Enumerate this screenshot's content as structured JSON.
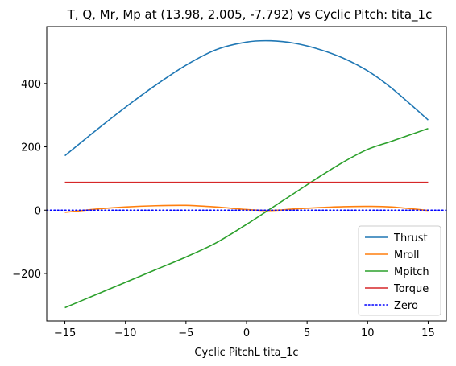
{
  "chart_data": {
    "type": "line",
    "title": "T, Q, Mr, Mp at (13.98, 2.005, -7.792) vs Cyclic Pitch: tita_1c",
    "xlabel": "Cyclic PitchL tita_1c",
    "ylabel": "",
    "xlim": [
      -16.5,
      16.5
    ],
    "ylim": [
      -350,
      580
    ],
    "xticks": [
      -15,
      -10,
      -5,
      0,
      5,
      10,
      15
    ],
    "xtick_labels": [
      "−15",
      "−10",
      "−5",
      "0",
      "5",
      "10",
      "15"
    ],
    "yticks": [
      -200,
      0,
      200,
      400
    ],
    "ytick_labels": [
      "−200",
      "0",
      "200",
      "400"
    ],
    "grid": false,
    "legend_position": "lower right",
    "series": [
      {
        "name": "Thrust",
        "color": "#1f77b4",
        "style": "solid",
        "x": [
          -15,
          -12.5,
          -10,
          -7.5,
          -5,
          -2.5,
          0,
          2,
          4,
          6,
          8,
          10,
          12,
          15
        ],
        "y": [
          172,
          250,
          325,
          395,
          458,
          507,
          531,
          535,
          527,
          508,
          480,
          440,
          385,
          285
        ]
      },
      {
        "name": "Mroll",
        "color": "#ff7f0e",
        "style": "solid",
        "x": [
          -15,
          -12.5,
          -10,
          -7.5,
          -5,
          -2.5,
          0,
          2,
          4,
          6,
          8,
          10,
          12,
          15
        ],
        "y": [
          -7,
          3,
          10,
          14,
          15,
          10,
          2,
          -1,
          4,
          8,
          11,
          12,
          10,
          -1
        ]
      },
      {
        "name": "Mpitch",
        "color": "#2ca02c",
        "style": "solid",
        "x": [
          -15,
          -12.5,
          -10,
          -7.5,
          -5,
          -2.5,
          0,
          2,
          4,
          6,
          8,
          10,
          12,
          15
        ],
        "y": [
          -308,
          -268,
          -228,
          -188,
          -148,
          -103,
          -45,
          5,
          55,
          105,
          152,
          192,
          218,
          258
        ]
      },
      {
        "name": "Torque",
        "color": "#d62728",
        "style": "solid",
        "x": [
          -15,
          15
        ],
        "y": [
          88,
          88
        ]
      },
      {
        "name": "Zero",
        "color": "#0000ff",
        "style": "dotted",
        "x": [
          -16.5,
          16.5
        ],
        "y": [
          0,
          0
        ]
      }
    ]
  }
}
